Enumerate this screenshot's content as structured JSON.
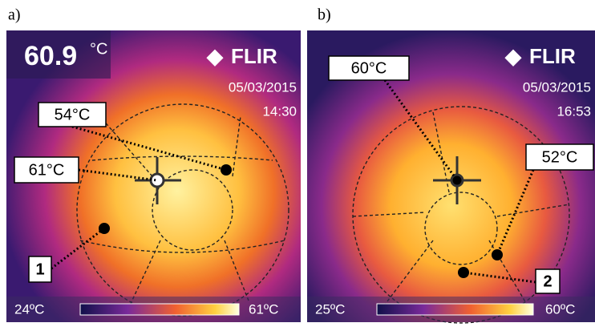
{
  "panels": [
    {
      "label": "a)",
      "reading": "60.9",
      "reading_unit": "°C",
      "brand": "FLIR",
      "date": "05/03/2015",
      "time": "14:30",
      "scale_min": "24ºC",
      "scale_max": "61ºC",
      "callouts": [
        "54°C",
        "61°C",
        "1"
      ]
    },
    {
      "label": "b)",
      "reading": "",
      "reading_unit": "",
      "brand": "FLIR",
      "date": "05/03/2015",
      "time": "16:53",
      "scale_min": "25ºC",
      "scale_max": "60ºC",
      "callouts": [
        "60°C",
        "52°C",
        "2"
      ]
    }
  ]
}
